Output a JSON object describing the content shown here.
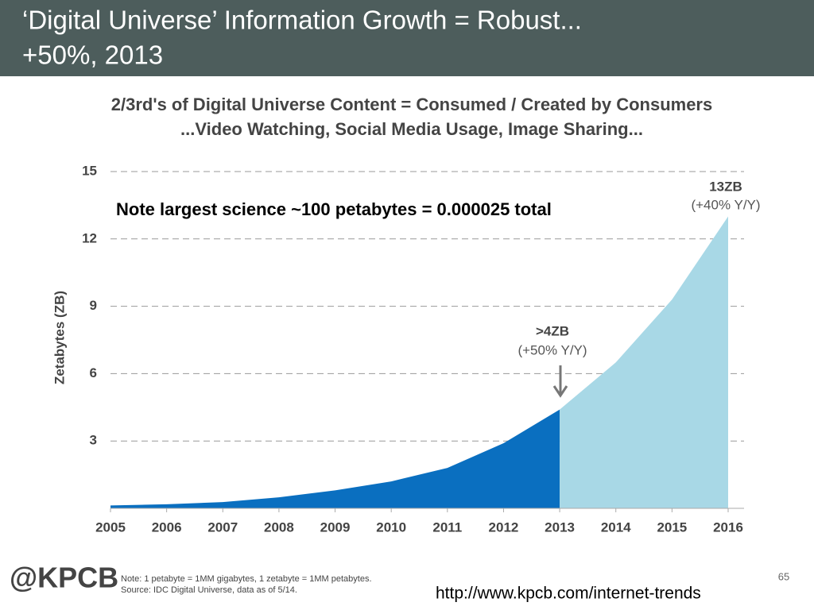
{
  "header": {
    "title": [
      "‘Digital Universe’ Information Growth = Robust...",
      "+50%, 2013"
    ]
  },
  "chart_data": {
    "type": "area",
    "title": [
      "2/3rd's of Digital Universe Content = Consumed / Created by Consumers",
      "...Video Watching, Social Media Usage, Image Sharing..."
    ],
    "y_label": "Zetabytes (ZB)",
    "x": [
      2005,
      2006,
      2007,
      2008,
      2009,
      2010,
      2011,
      2012,
      2013,
      2014,
      2015,
      2016
    ],
    "xlim": [
      2005,
      2016
    ],
    "xticks": [
      2005,
      2006,
      2007,
      2008,
      2009,
      2010,
      2011,
      2012,
      2013,
      2014,
      2015,
      2016
    ],
    "ylim": [
      0,
      15
    ],
    "yticks": [
      3,
      6,
      9,
      12,
      15
    ],
    "grid": true,
    "series": [
      {
        "color": "#0a6fc0",
        "values": [
          0.13,
          0.18,
          0.28,
          0.49,
          0.8,
          1.2,
          1.8,
          2.9,
          4.4,
          null,
          null,
          null
        ]
      },
      {
        "color": "#a8d8e6",
        "values": [
          null,
          null,
          null,
          null,
          null,
          null,
          null,
          null,
          4.4,
          6.5,
          9.3,
          13.0
        ]
      }
    ],
    "annotations": [
      "13ZB",
      "(+40% Y/Y)",
      ">4ZB",
      "(+50% Y/Y)",
      "Note largest science ~100 petabytes = 0.000025 total"
    ]
  },
  "footer": {
    "logo": "@KPCB",
    "notes": [
      "Note: 1 petabyte = 1MM gigabytes, 1 zetabyte = 1MM petabytes.",
      "Source: IDC Digital Universe, data as of 5/14."
    ],
    "page": "65",
    "url": "http://www.kpcb.com/internet-trends"
  }
}
